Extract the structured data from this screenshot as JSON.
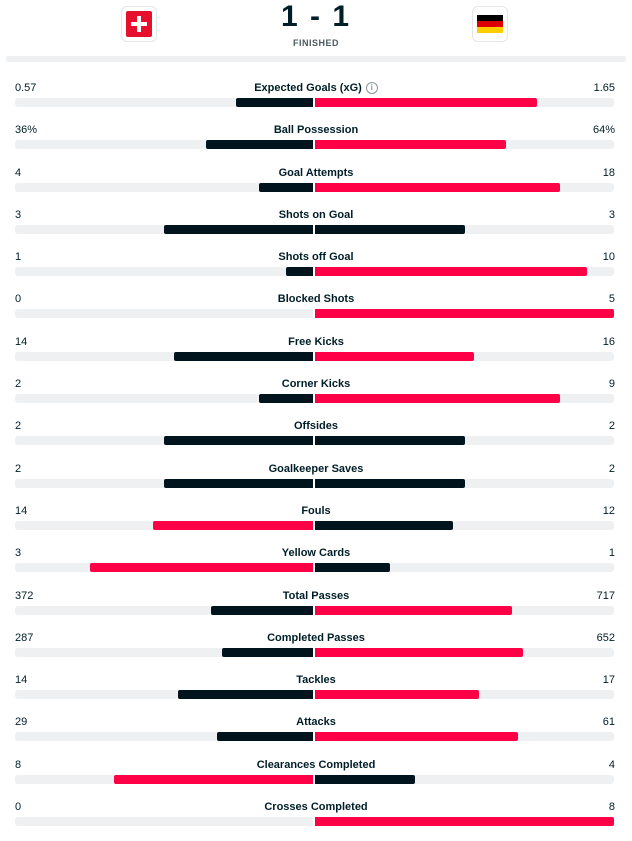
{
  "match": {
    "score": "1 - 1",
    "status": "FINISHED",
    "home_flag": "switzerland-flag",
    "away_flag": "germany-flag"
  },
  "colors": {
    "winner": "#ff0046",
    "loser": "#00141e",
    "track": "#eef0f1",
    "germany_black": "#000000",
    "germany_red": "#dd0000",
    "germany_gold": "#ffce00"
  },
  "stats": [
    {
      "label": "Expected Goals (xG)",
      "home": "0.57",
      "away": "1.65",
      "home_share": 0.257,
      "away_share": 0.743,
      "info": "i"
    },
    {
      "label": "Ball Possession",
      "home": "36%",
      "away": "64%",
      "home_share": 0.36,
      "away_share": 0.64
    },
    {
      "label": "Goal Attempts",
      "home": "4",
      "away": "18",
      "home_share": 0.182,
      "away_share": 0.818
    },
    {
      "label": "Shots on Goal",
      "home": "3",
      "away": "3",
      "home_share": 0.5,
      "away_share": 0.5
    },
    {
      "label": "Shots off Goal",
      "home": "1",
      "away": "10",
      "home_share": 0.091,
      "away_share": 0.909
    },
    {
      "label": "Blocked Shots",
      "home": "0",
      "away": "5",
      "home_share": 0,
      "away_share": 1
    },
    {
      "label": "Free Kicks",
      "home": "14",
      "away": "16",
      "home_share": 0.467,
      "away_share": 0.533
    },
    {
      "label": "Corner Kicks",
      "home": "2",
      "away": "9",
      "home_share": 0.182,
      "away_share": 0.818
    },
    {
      "label": "Offsides",
      "home": "2",
      "away": "2",
      "home_share": 0.5,
      "away_share": 0.5
    },
    {
      "label": "Goalkeeper Saves",
      "home": "2",
      "away": "2",
      "home_share": 0.5,
      "away_share": 0.5
    },
    {
      "label": "Fouls",
      "home": "14",
      "away": "12",
      "home_share": 0.538,
      "away_share": 0.462
    },
    {
      "label": "Yellow Cards",
      "home": "3",
      "away": "1",
      "home_share": 0.75,
      "away_share": 0.25
    },
    {
      "label": "Total Passes",
      "home": "372",
      "away": "717",
      "home_share": 0.342,
      "away_share": 0.658
    },
    {
      "label": "Completed Passes",
      "home": "287",
      "away": "652",
      "home_share": 0.306,
      "away_share": 0.694
    },
    {
      "label": "Tackles",
      "home": "14",
      "away": "17",
      "home_share": 0.452,
      "away_share": 0.548
    },
    {
      "label": "Attacks",
      "home": "29",
      "away": "61",
      "home_share": 0.322,
      "away_share": 0.678
    },
    {
      "label": "Clearances Completed",
      "home": "8",
      "away": "4",
      "home_share": 0.667,
      "away_share": 0.333
    },
    {
      "label": "Crosses Completed",
      "home": "0",
      "away": "8",
      "home_share": 0,
      "away_share": 1
    }
  ]
}
